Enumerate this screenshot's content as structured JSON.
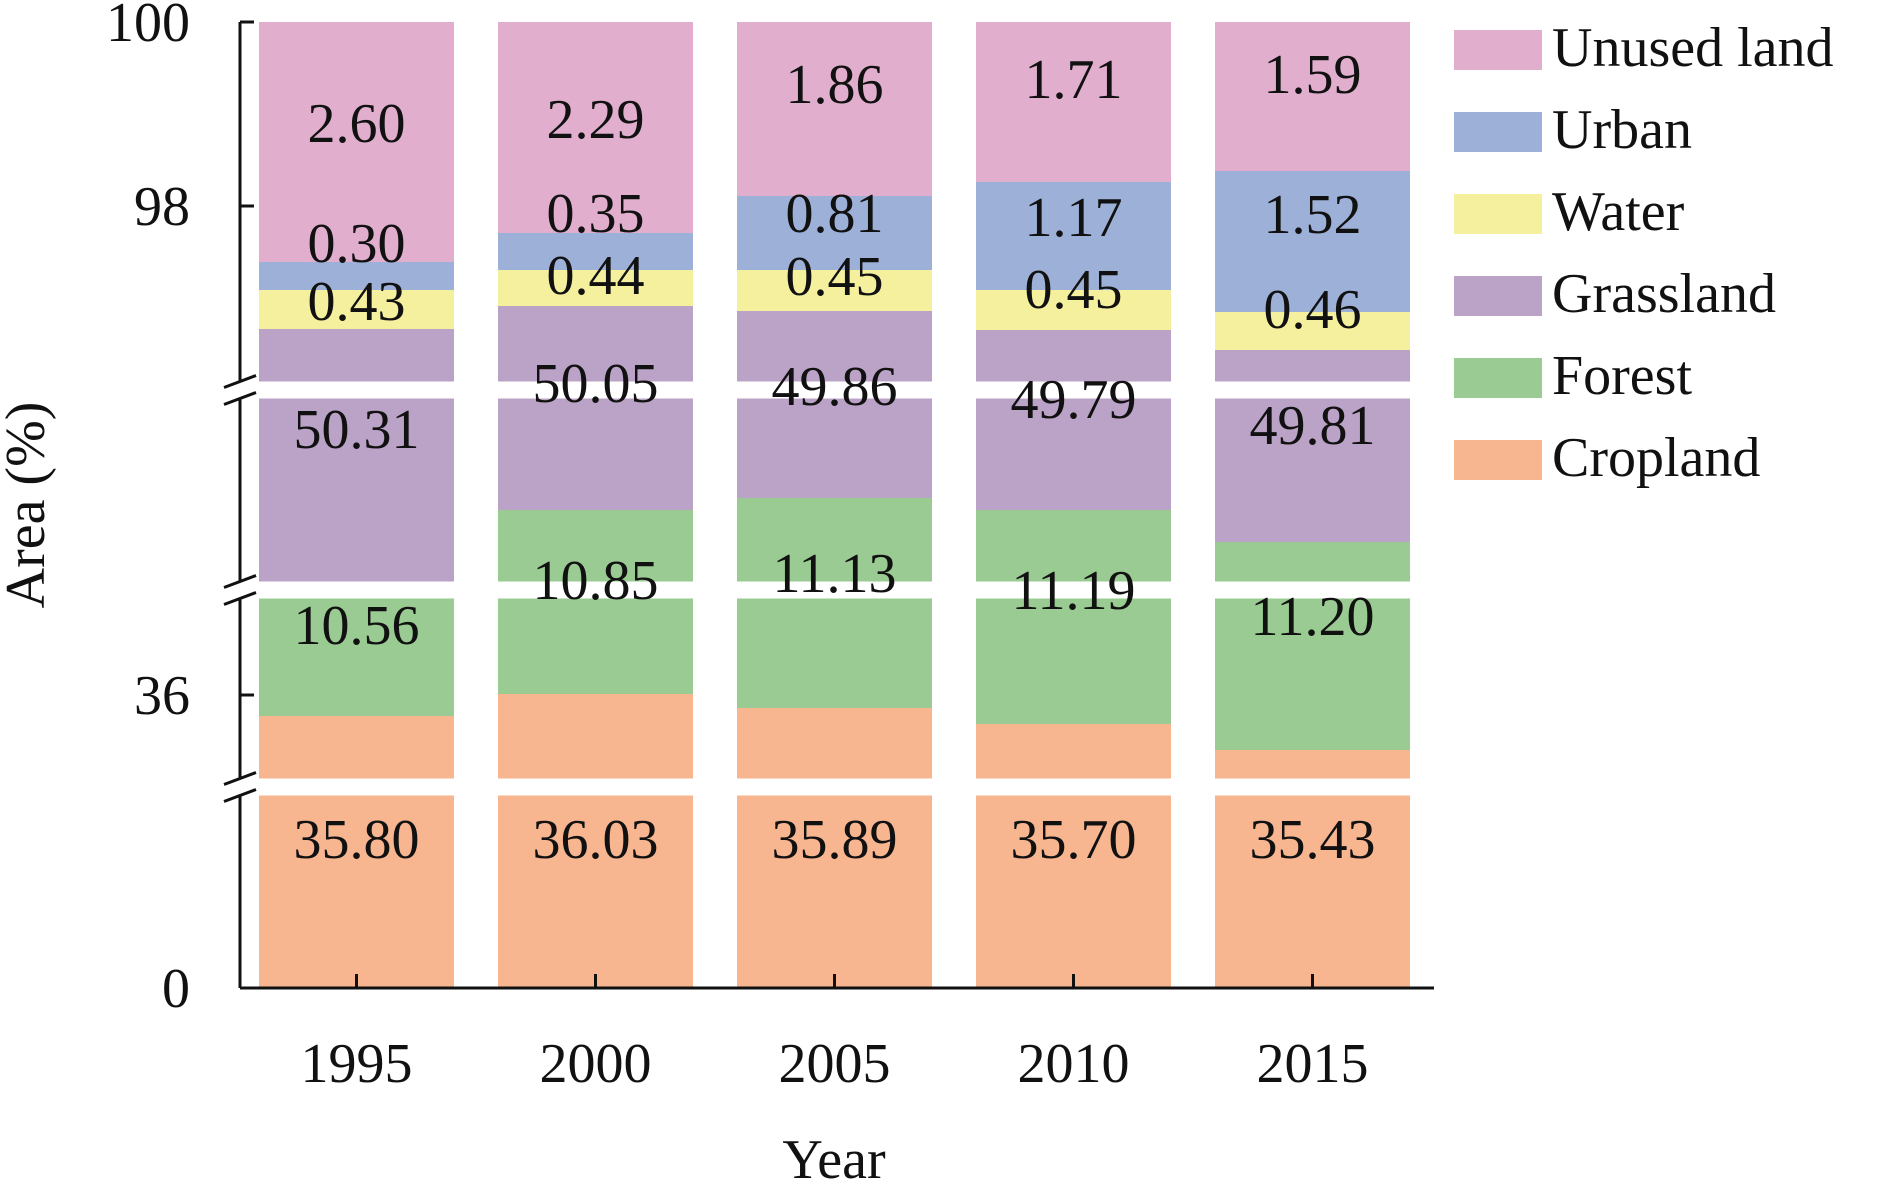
{
  "chart_data": {
    "type": "bar",
    "stacked": true,
    "broken_y_axis": true,
    "categories": [
      "1995",
      "2000",
      "2005",
      "2010",
      "2015"
    ],
    "xlabel": "Year",
    "ylabel": "Area (%)",
    "y_ticks": [
      "100",
      "98",
      "36",
      "0"
    ],
    "legend_position": "right",
    "series": [
      {
        "name": "Cropland",
        "color": "#F7B590",
        "values": [
          35.8,
          36.03,
          35.89,
          35.7,
          35.43
        ],
        "labels": [
          "35.80",
          "36.03",
          "35.89",
          "35.70",
          "35.43"
        ]
      },
      {
        "name": "Forest",
        "color": "#9ACB92",
        "values": [
          10.56,
          10.85,
          11.13,
          11.19,
          11.2
        ],
        "labels": [
          "10.56",
          "10.85",
          "11.13",
          "11.19",
          "11.20"
        ]
      },
      {
        "name": "Grassland",
        "color": "#BBA3C7",
        "values": [
          50.31,
          50.05,
          49.86,
          49.79,
          49.81
        ],
        "labels": [
          "50.31",
          "50.05",
          "49.86",
          "49.79",
          "49.81"
        ]
      },
      {
        "name": "Water",
        "color": "#F4F09D",
        "values": [
          0.43,
          0.44,
          0.45,
          0.45,
          0.46
        ],
        "labels": [
          "0.43",
          "0.44",
          "0.45",
          "0.45",
          "0.46"
        ]
      },
      {
        "name": "Urban",
        "color": "#9DB0D8",
        "values": [
          0.3,
          0.35,
          0.81,
          1.17,
          1.52
        ],
        "labels": [
          "0.30",
          "0.35",
          "0.81",
          "1.17",
          "1.52"
        ]
      },
      {
        "name": "Unused land",
        "color": "#E1AECD",
        "values": [
          2.6,
          2.29,
          1.86,
          1.71,
          1.59
        ],
        "labels": [
          "2.60",
          "2.29",
          "1.86",
          "1.71",
          "1.59"
        ]
      }
    ],
    "legend_order": [
      "Unused land",
      "Urban",
      "Water",
      "Grassland",
      "Forest",
      "Cropland"
    ]
  }
}
